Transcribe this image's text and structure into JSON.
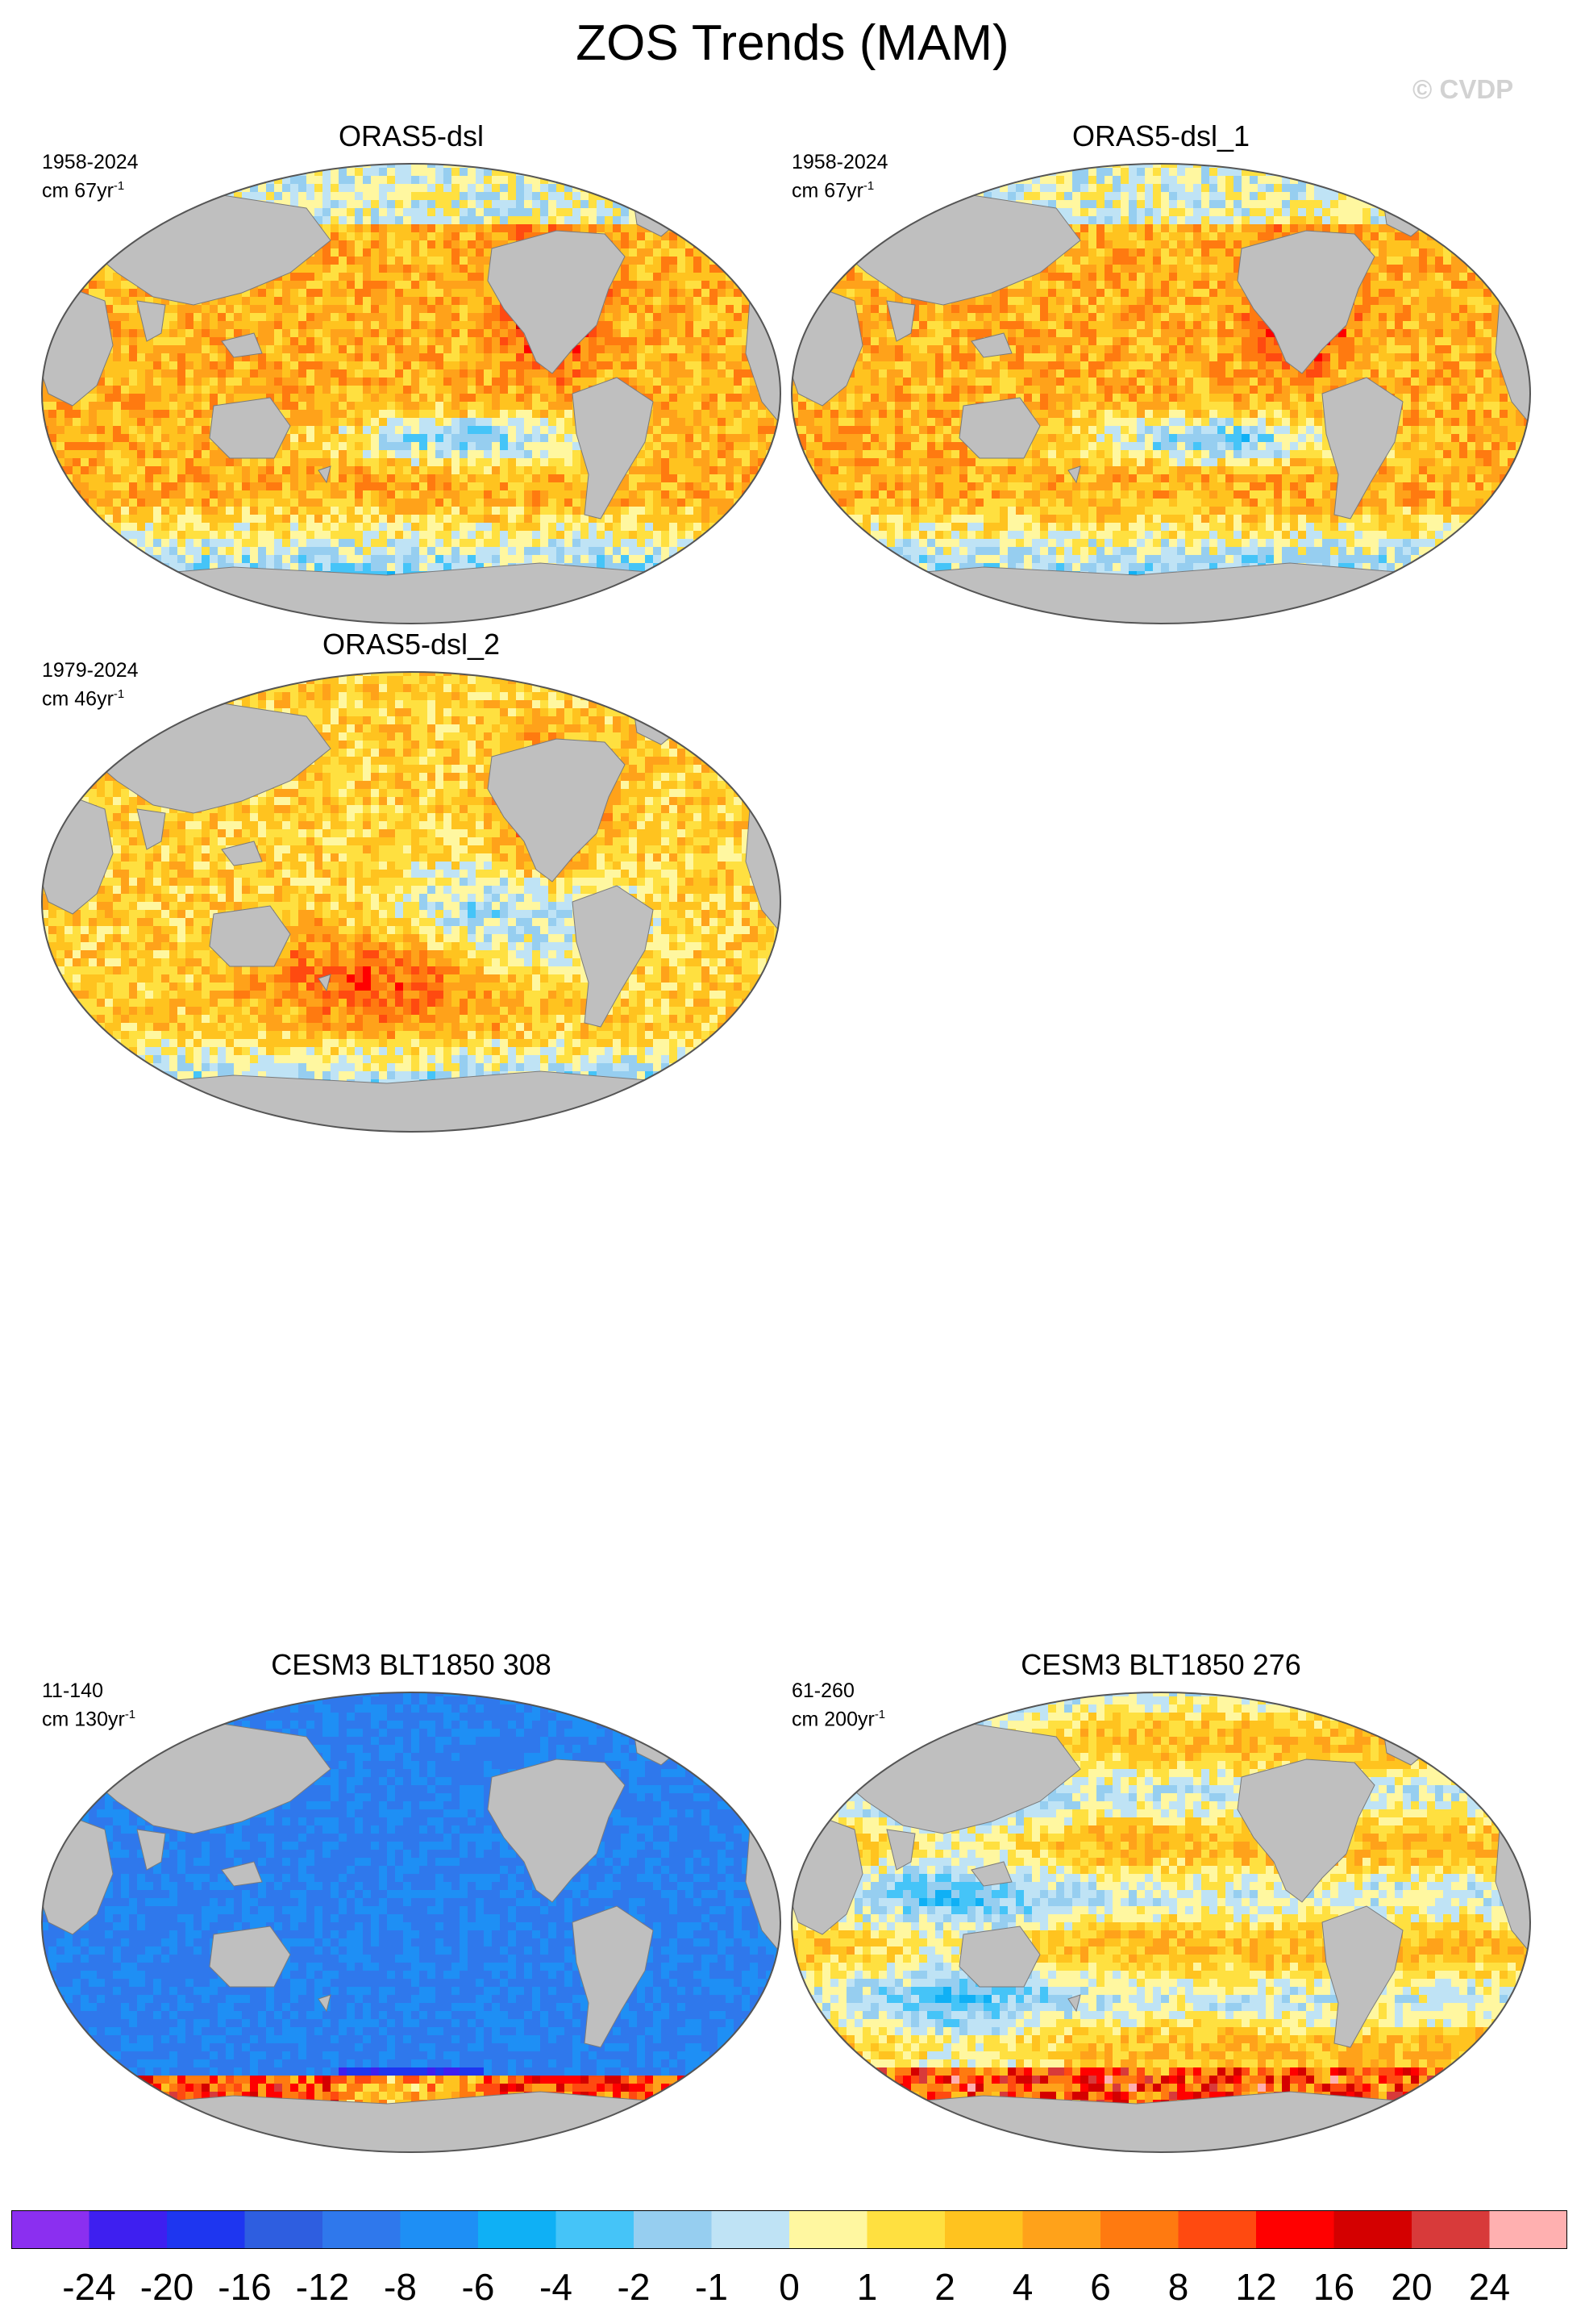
{
  "title": "ZOS Trends (MAM)",
  "watermark": "© CVDP",
  "colors": {
    "land": "#bfbfbf",
    "outline": "#555555",
    "contour_levels": [
      "#8b2ff0",
      "#3e1ff0",
      "#1e36f0",
      "#2e5ee0",
      "#2f78ec",
      "#1e8ff5",
      "#0fb0f5",
      "#45c4f8",
      "#96cef0",
      "#bfe3f5",
      "#fff7a0",
      "#ffe040",
      "#ffc31f",
      "#ffa21a",
      "#ff7a10",
      "#ff4a10",
      "#ff0000",
      "#d40000",
      "#d83a3a",
      "#ffb0b0"
    ]
  },
  "chart_data": [
    {
      "type": "heatmap",
      "title": "ORAS5-dsl",
      "period": "1958-2024",
      "units_prefix": "cm 67yr",
      "units_exponent": "-1",
      "pattern": "oras_a"
    },
    {
      "type": "heatmap",
      "title": "ORAS5-dsl_1",
      "period": "1958-2024",
      "units_prefix": "cm 67yr",
      "units_exponent": "-1",
      "pattern": "oras_a"
    },
    {
      "type": "heatmap",
      "title": "ORAS5-dsl_2",
      "period": "1979-2024",
      "units_prefix": "cm 46yr",
      "units_exponent": "-1",
      "pattern": "oras_b"
    },
    {
      "type": "heatmap",
      "title": "CESM3 BLT1850 308",
      "period": "11-140",
      "units_prefix": "cm 130yr",
      "units_exponent": "-1",
      "pattern": "cesm_a"
    },
    {
      "type": "heatmap",
      "title": "CESM3 BLT1850 276",
      "period": "61-260",
      "units_prefix": "cm 200yr",
      "units_exponent": "-1",
      "pattern": "cesm_b"
    }
  ],
  "colorbar": {
    "labels": [
      "-24",
      "-20",
      "-16",
      "-12",
      "-8",
      "-6",
      "-4",
      "-2",
      "-1",
      "0",
      "1",
      "2",
      "4",
      "6",
      "8",
      "12",
      "16",
      "20",
      "24"
    ]
  }
}
